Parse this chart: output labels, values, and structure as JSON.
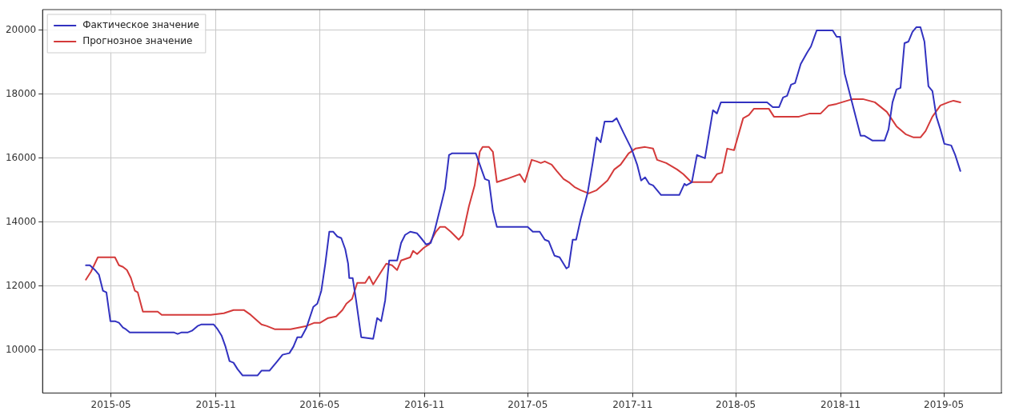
{
  "chart_data": {
    "type": "line",
    "xlim": [
      "2015-01-01",
      "2019-08-10"
    ],
    "xticks": [
      "2015-05",
      "2015-11",
      "2016-05",
      "2016-11",
      "2017-05",
      "2017-11",
      "2018-05",
      "2018-11",
      "2019-05"
    ],
    "ylim": [
      8650,
      20650
    ],
    "yticks": [
      10000,
      12000,
      14000,
      16000,
      18000,
      20000
    ],
    "grid": true,
    "legend": "top left",
    "series": [
      {
        "name": "Фактическое значение",
        "color": "#3232c0",
        "x": [
          "2015-03-18",
          "2015-03-25",
          "2015-04-03",
          "2015-04-10",
          "2015-04-17",
          "2015-04-23",
          "2015-04-30",
          "2015-05-08",
          "2015-05-15",
          "2015-05-22",
          "2015-05-27",
          "2015-06-03",
          "2015-08-19",
          "2015-08-26",
          "2015-09-02",
          "2015-09-13",
          "2015-09-20",
          "2015-09-30",
          "2015-10-07",
          "2015-10-28",
          "2015-11-04",
          "2015-11-11",
          "2015-11-18",
          "2015-11-25",
          "2015-12-02",
          "2015-12-09",
          "2015-12-18",
          "2016-01-13",
          "2016-01-20",
          "2016-02-03",
          "2016-02-10",
          "2016-02-17",
          "2016-02-26",
          "2016-03-09",
          "2016-03-16",
          "2016-03-23",
          "2016-03-30",
          "2016-04-08",
          "2016-04-20",
          "2016-04-27",
          "2016-05-04",
          "2016-05-11",
          "2016-05-18",
          "2016-05-25",
          "2016-06-01",
          "2016-06-08",
          "2016-06-15",
          "2016-06-20",
          "2016-06-22",
          "2016-06-28",
          "2016-07-04",
          "2016-07-13",
          "2016-08-03",
          "2016-08-10",
          "2016-08-17",
          "2016-08-24",
          "2016-08-31",
          "2016-09-14",
          "2016-09-21",
          "2016-09-28",
          "2016-10-07",
          "2016-10-19",
          "2016-10-26",
          "2016-11-04",
          "2016-11-12",
          "2016-11-19",
          "2016-11-26",
          "2016-12-03",
          "2016-12-07",
          "2016-12-14",
          "2016-12-19",
          "2017-01-30",
          "2017-02-06",
          "2017-02-15",
          "2017-02-22",
          "2017-03-01",
          "2017-03-08",
          "2017-05-01",
          "2017-05-10",
          "2017-05-22",
          "2017-05-31",
          "2017-06-07",
          "2017-06-17",
          "2017-06-26",
          "2017-07-08",
          "2017-07-12",
          "2017-07-19",
          "2017-07-25",
          "2017-08-02",
          "2017-08-14",
          "2017-08-23",
          "2017-08-30",
          "2017-09-06",
          "2017-09-13",
          "2017-09-27",
          "2017-10-04",
          "2017-10-16",
          "2017-10-30",
          "2017-11-09",
          "2017-11-16",
          "2017-11-23",
          "2017-11-30",
          "2017-12-07",
          "2017-12-21",
          "2018-01-22",
          "2018-01-31",
          "2018-02-03",
          "2018-02-13",
          "2018-02-22",
          "2018-03-01",
          "2018-03-08",
          "2018-03-22",
          "2018-03-29",
          "2018-04-05",
          "2018-06-25",
          "2018-07-05",
          "2018-07-16",
          "2018-07-23",
          "2018-07-30",
          "2018-08-06",
          "2018-08-13",
          "2018-08-23",
          "2018-09-03",
          "2018-09-10",
          "2018-09-20",
          "2018-10-18",
          "2018-10-25",
          "2018-10-31",
          "2018-11-08",
          "2018-12-06",
          "2018-12-13",
          "2018-12-27",
          "2019-01-17",
          "2019-01-24",
          "2019-01-31",
          "2019-02-07",
          "2019-02-14",
          "2019-02-21",
          "2019-02-28",
          "2019-03-07",
          "2019-03-14",
          "2019-03-21",
          "2019-03-28",
          "2019-04-04",
          "2019-04-11",
          "2019-04-18",
          "2019-04-25",
          "2019-05-02",
          "2019-05-14",
          "2019-05-21",
          "2019-05-30"
        ],
        "values": [
          12650,
          12650,
          12500,
          12350,
          11850,
          11800,
          10900,
          10900,
          10850,
          10700,
          10650,
          10550,
          10550,
          10500,
          10550,
          10550,
          10600,
          10750,
          10800,
          10800,
          10650,
          10450,
          10100,
          9650,
          9600,
          9400,
          9200,
          9200,
          9350,
          9350,
          9500,
          9650,
          9850,
          9900,
          10100,
          10400,
          10400,
          10700,
          11350,
          11450,
          11850,
          12700,
          13700,
          13700,
          13550,
          13500,
          13150,
          12700,
          12250,
          12250,
          11550,
          10400,
          10350,
          11000,
          10900,
          11550,
          12800,
          12800,
          13350,
          13600,
          13700,
          13650,
          13500,
          13300,
          13350,
          13750,
          14250,
          14750,
          15050,
          16100,
          16150,
          16150,
          15800,
          15350,
          15300,
          14350,
          13850,
          13850,
          13700,
          13700,
          13450,
          13400,
          12950,
          12900,
          12550,
          12600,
          13450,
          13450,
          14100,
          14900,
          15850,
          16650,
          16500,
          17150,
          17150,
          17250,
          16800,
          16300,
          15800,
          15300,
          15400,
          15200,
          15150,
          14850,
          14850,
          15200,
          15150,
          15250,
          16100,
          16050,
          16000,
          17500,
          17400,
          17750,
          17750,
          17600,
          17600,
          17900,
          17950,
          18300,
          18350,
          18950,
          19300,
          19500,
          20000,
          20000,
          19800,
          19800,
          18650,
          16700,
          16700,
          16550,
          16550,
          16900,
          17750,
          18150,
          18200,
          19600,
          19650,
          19950,
          20100,
          20100,
          19650,
          18250,
          18100,
          17300,
          16900,
          16450,
          16400,
          16100,
          15600
        ]
      },
      {
        "name": "Прогнозное значение",
        "color": "#d43a3a",
        "x": [
          "2015-03-18",
          "2015-03-27",
          "2015-04-08",
          "2015-05-08",
          "2015-05-15",
          "2015-05-22",
          "2015-05-29",
          "2015-06-05",
          "2015-06-12",
          "2015-06-17",
          "2015-06-26",
          "2015-07-22",
          "2015-07-29",
          "2015-10-23",
          "2015-11-15",
          "2015-12-02",
          "2015-12-20",
          "2016-01-01",
          "2016-01-20",
          "2016-01-29",
          "2016-02-12",
          "2016-03-11",
          "2016-03-25",
          "2016-04-08",
          "2016-04-22",
          "2016-05-02",
          "2016-05-16",
          "2016-05-30",
          "2016-06-10",
          "2016-06-17",
          "2016-06-27",
          "2016-07-06",
          "2016-07-20",
          "2016-07-27",
          "2016-08-03",
          "2016-08-17",
          "2016-08-26",
          "2016-09-05",
          "2016-09-14",
          "2016-09-21",
          "2016-10-07",
          "2016-10-12",
          "2016-10-19",
          "2016-10-31",
          "2016-11-09",
          "2016-11-21",
          "2016-11-28",
          "2016-12-07",
          "2016-12-17",
          "2016-12-31",
          "2017-01-07",
          "2017-01-18",
          "2017-01-28",
          "2017-02-06",
          "2017-02-11",
          "2017-02-22",
          "2017-03-01",
          "2017-03-08",
          "2017-03-25",
          "2017-04-17",
          "2017-04-26",
          "2017-05-08",
          "2017-05-17",
          "2017-05-24",
          "2017-05-31",
          "2017-06-12",
          "2017-06-21",
          "2017-07-03",
          "2017-07-12",
          "2017-07-22",
          "2017-08-02",
          "2017-08-16",
          "2017-08-30",
          "2017-09-18",
          "2017-09-30",
          "2017-10-11",
          "2017-10-25",
          "2017-11-06",
          "2017-11-23",
          "2017-12-07",
          "2017-12-14",
          "2017-12-30",
          "2018-01-18",
          "2018-01-29",
          "2018-02-12",
          "2018-03-19",
          "2018-03-29",
          "2018-04-07",
          "2018-04-16",
          "2018-04-28",
          "2018-05-14",
          "2018-05-24",
          "2018-06-02",
          "2018-06-28",
          "2018-07-07",
          "2018-08-20",
          "2018-09-08",
          "2018-09-27",
          "2018-10-11",
          "2018-10-25",
          "2018-11-22",
          "2018-12-10",
          "2018-12-31",
          "2019-01-21",
          "2019-02-07",
          "2019-02-23",
          "2019-03-09",
          "2019-03-21",
          "2019-03-30",
          "2019-04-11",
          "2019-04-25",
          "2019-05-09",
          "2019-05-18",
          "2019-05-30"
        ],
        "values": [
          12200,
          12450,
          12900,
          12900,
          12650,
          12600,
          12500,
          12250,
          11850,
          11800,
          11200,
          11200,
          11100,
          11100,
          11150,
          11250,
          11250,
          11100,
          10800,
          10750,
          10650,
          10650,
          10700,
          10750,
          10850,
          10850,
          11000,
          11050,
          11250,
          11450,
          11600,
          12100,
          12100,
          12300,
          12050,
          12450,
          12700,
          12650,
          12500,
          12800,
          12900,
          13100,
          13000,
          13200,
          13300,
          13700,
          13850,
          13850,
          13700,
          13450,
          13600,
          14500,
          15150,
          16200,
          16350,
          16350,
          16200,
          15250,
          15350,
          15500,
          15250,
          15950,
          15900,
          15850,
          15900,
          15800,
          15600,
          15350,
          15250,
          15100,
          15000,
          14900,
          15000,
          15300,
          15650,
          15800,
          16150,
          16300,
          16350,
          16300,
          15950,
          15850,
          15650,
          15500,
          15250,
          15250,
          15500,
          15550,
          16300,
          16250,
          17250,
          17350,
          17550,
          17550,
          17300,
          17300,
          17400,
          17400,
          17650,
          17700,
          17850,
          17850,
          17750,
          17450,
          17000,
          16750,
          16650,
          16650,
          16850,
          17300,
          17650,
          17750,
          17800,
          17750
        ]
      }
    ]
  }
}
